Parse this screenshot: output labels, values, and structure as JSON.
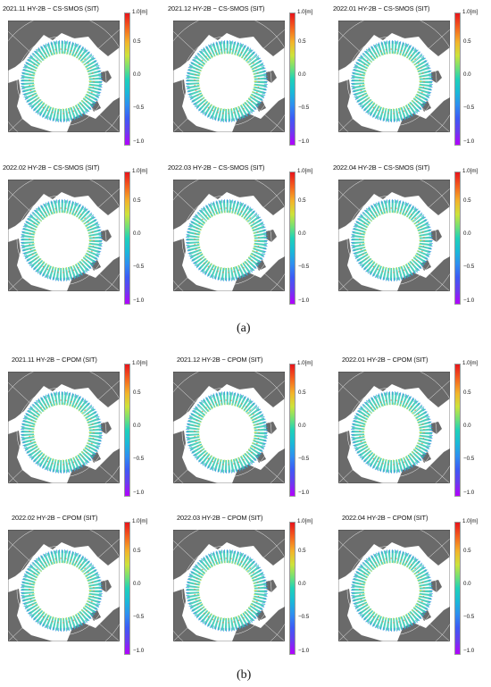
{
  "panels_a": [
    {
      "title": "2021.11 HY-2B − CS-SMOS (SIT)"
    },
    {
      "title": "2021.12 HY-2B − CS-SMOS (SIT)"
    },
    {
      "title": "2022.01  HY-2B − CS-SMOS (SIT)"
    },
    {
      "title": "2022.02 HY-2B − CS-SMOS (SIT)"
    },
    {
      "title": "2022.03 HY-2B − CS-SMOS (SIT)"
    },
    {
      "title": "2022.04 HY-2B − CS-SMOS (SIT)"
    }
  ],
  "panels_b": [
    {
      "title": "2021.11 HY-2B − CPOM (SIT)"
    },
    {
      "title": "2021.12 HY-2B − CPOM (SIT)"
    },
    {
      "title": "2022.01  HY-2B − CPOM (SIT)"
    },
    {
      "title": "2022.02 HY-2B − CPOM (SIT)"
    },
    {
      "title": "2022.03 HY-2B − CPOM (SIT)"
    },
    {
      "title": "2022.04 HY-2B − CPOM (SIT)"
    }
  ],
  "colorbar": {
    "unit_label": "1.0[m]",
    "ticks": [
      "0.5",
      "0.0",
      "−0.5",
      "−1.0"
    ],
    "tick_values": [
      0.5,
      0.0,
      -0.5,
      -1.0
    ],
    "min": -1.0,
    "max": 1.0
  },
  "labels": {
    "a": "(a)",
    "b": "(b)"
  },
  "colors": {
    "land": "#6a6a6a",
    "ocean": "#ffffff",
    "pole_hole": "#ffffff"
  }
}
